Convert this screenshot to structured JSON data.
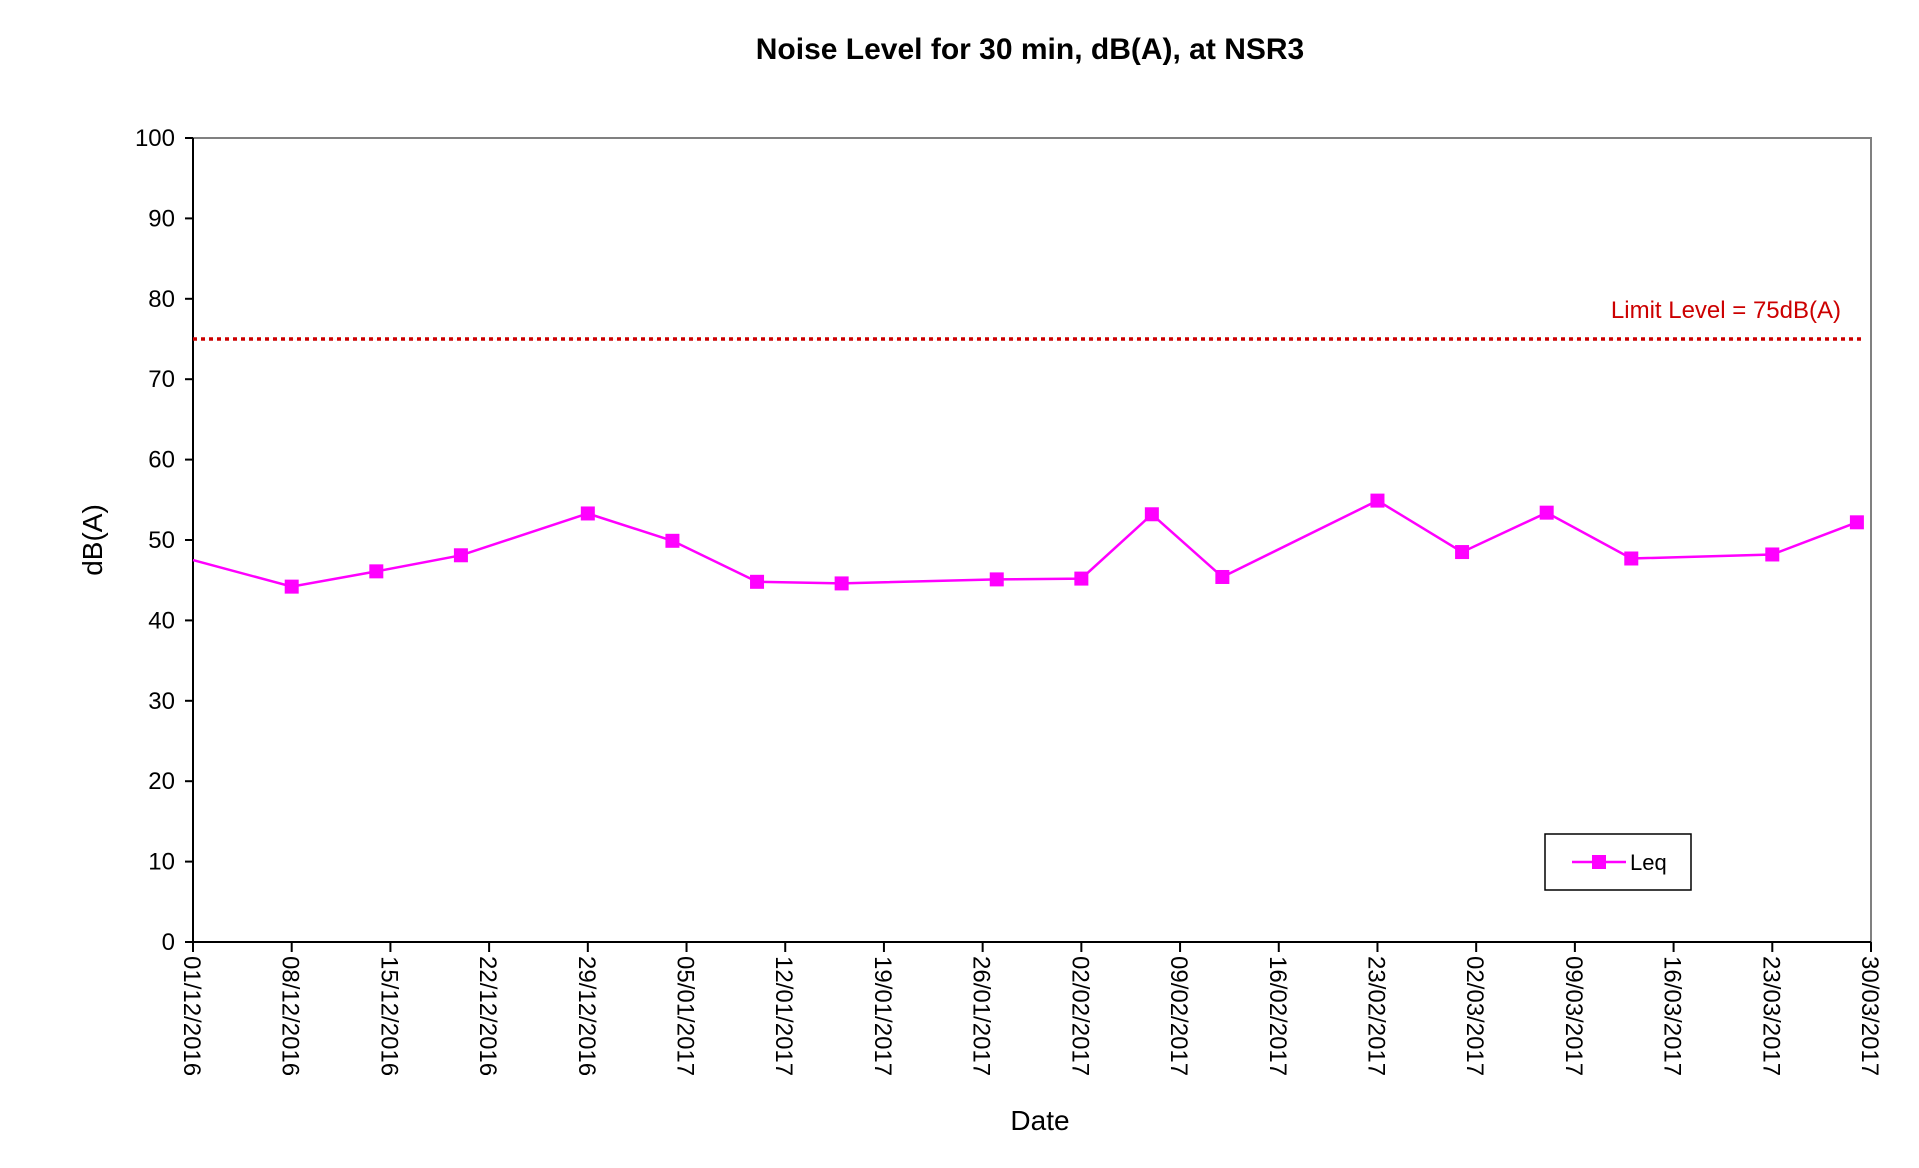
{
  "chart_data": {
    "type": "line",
    "title": "Noise Level for 30 min, dB(A), at NSR3",
    "xlabel": "Date",
    "ylabel": "dB(A)",
    "ylim": [
      0,
      100
    ],
    "yticks": [
      0,
      10,
      20,
      30,
      40,
      50,
      60,
      70,
      80,
      90,
      100
    ],
    "xlim": [
      "01/12/2016",
      "30/03/2017"
    ],
    "xticks": [
      "01/12/2016",
      "08/12/2016",
      "15/12/2016",
      "22/12/2016",
      "29/12/2016",
      "05/01/2017",
      "12/01/2017",
      "19/01/2017",
      "26/01/2017",
      "02/02/2017",
      "09/02/2017",
      "16/02/2017",
      "23/02/2017",
      "02/03/2017",
      "09/03/2017",
      "16/03/2017",
      "23/03/2017",
      "30/03/2017"
    ],
    "grid": false,
    "legend_position": "bottom-right",
    "series": [
      {
        "name": "Leq",
        "color": "#ff00ff",
        "marker": "square",
        "points": [
          {
            "x": "01/12/2016",
            "y": 47.5
          },
          {
            "x": "08/12/2016",
            "y": 44.2
          },
          {
            "x": "14/12/2016",
            "y": 46.1
          },
          {
            "x": "20/12/2016",
            "y": 48.1
          },
          {
            "x": "29/12/2016",
            "y": 53.3
          },
          {
            "x": "04/01/2017",
            "y": 49.9
          },
          {
            "x": "10/01/2017",
            "y": 44.8
          },
          {
            "x": "16/01/2017",
            "y": 44.6
          },
          {
            "x": "27/01/2017",
            "y": 45.1
          },
          {
            "x": "02/02/2017",
            "y": 45.2
          },
          {
            "x": "07/02/2017",
            "y": 53.2
          },
          {
            "x": "12/02/2017",
            "y": 45.4
          },
          {
            "x": "23/02/2017",
            "y": 54.9
          },
          {
            "x": "01/03/2017",
            "y": 48.5
          },
          {
            "x": "07/03/2017",
            "y": 53.4
          },
          {
            "x": "13/03/2017",
            "y": 47.7
          },
          {
            "x": "23/03/2017",
            "y": 48.2
          },
          {
            "x": "29/03/2017",
            "y": 52.2
          }
        ]
      }
    ],
    "reference_line": {
      "label": "Limit Level = 75dB(A)",
      "y": 75,
      "color": "#cc0000",
      "style": "dotted"
    }
  }
}
